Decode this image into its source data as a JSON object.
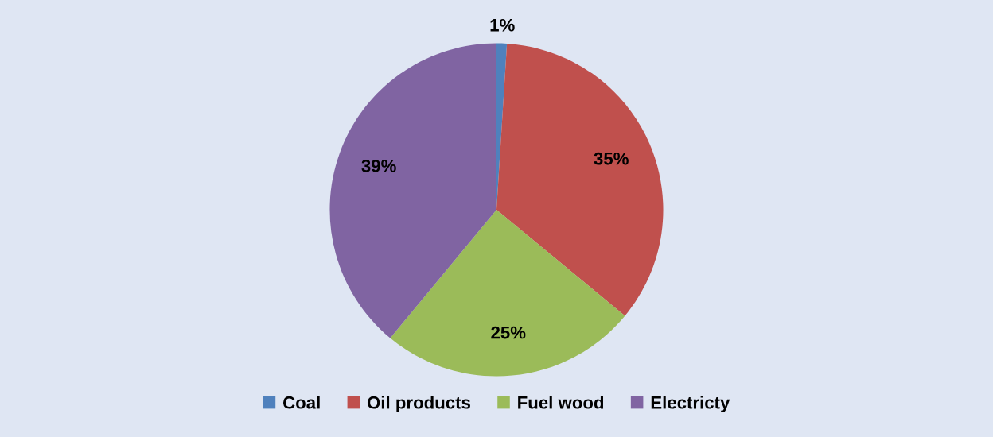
{
  "chart_data": {
    "type": "pie",
    "categories": [
      "Coal",
      "Oil products",
      "Fuel wood",
      "Electricty"
    ],
    "values": [
      1,
      35,
      25,
      39
    ],
    "colors": [
      "#4f81bd",
      "#c0504d",
      "#9bbb59",
      "#8064a2"
    ],
    "value_labels": [
      "1%",
      "35%",
      "25%",
      "39%"
    ],
    "legend": "bottom"
  }
}
